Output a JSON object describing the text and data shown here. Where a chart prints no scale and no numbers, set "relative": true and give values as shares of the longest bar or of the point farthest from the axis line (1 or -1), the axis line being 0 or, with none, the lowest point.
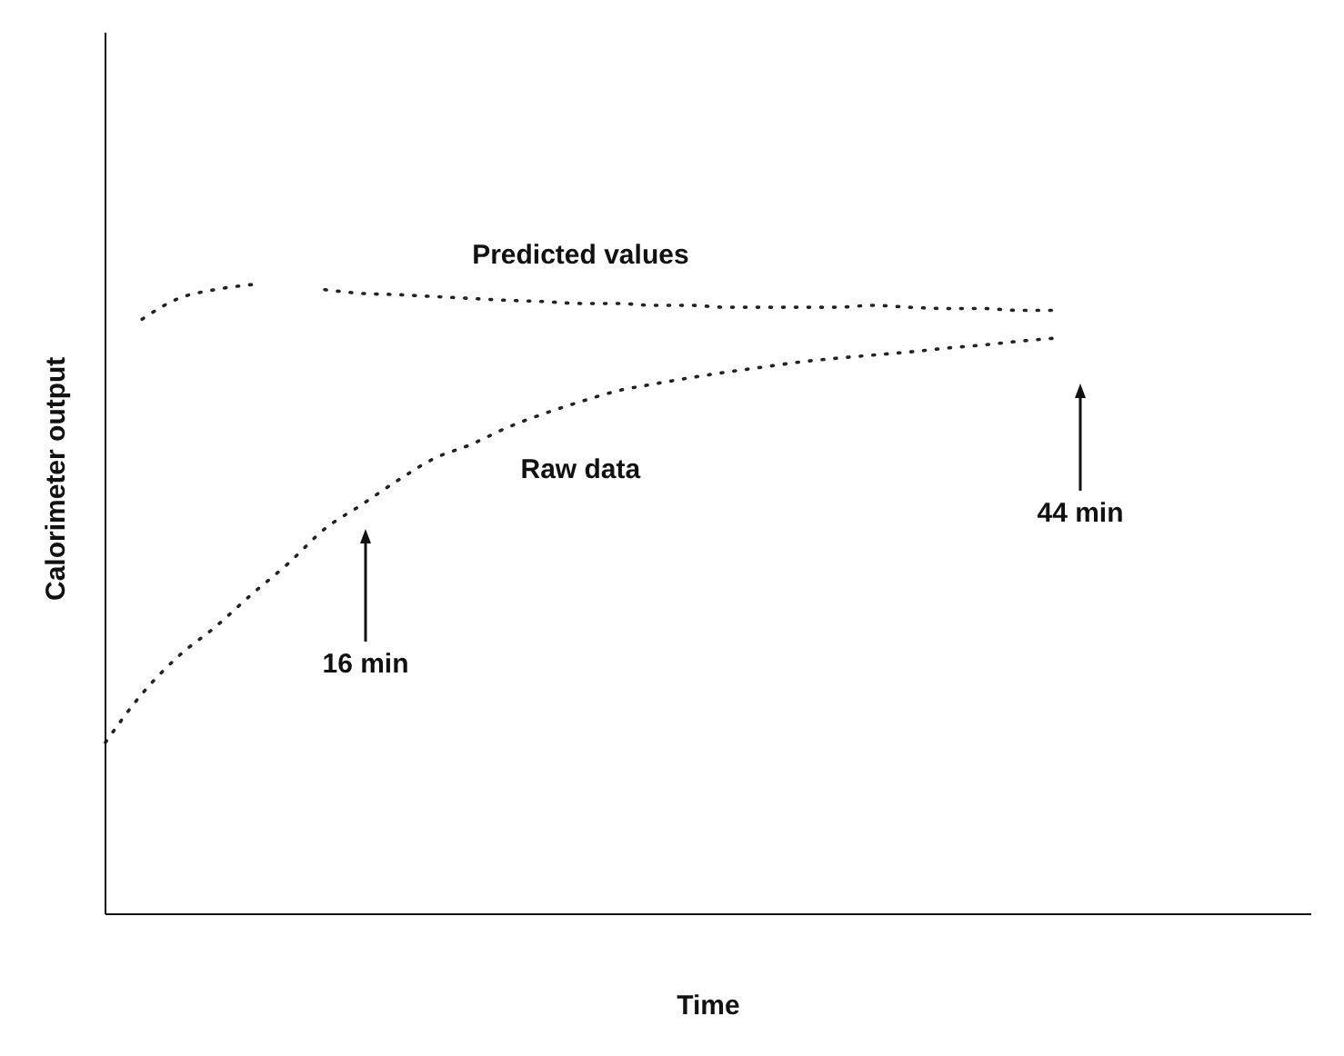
{
  "chart_data": {
    "type": "line",
    "relative": true,
    "xlabel": "Time",
    "ylabel": "Calorimeter output",
    "categories": [
      null,
      null,
      null,
      null,
      null,
      null,
      null,
      null,
      null,
      null,
      null,
      null,
      null,
      null,
      null,
      null,
      null,
      null,
      null,
      null,
      null,
      null,
      null,
      null,
      null,
      null,
      null,
      null,
      null,
      null,
      null,
      null,
      null,
      null
    ],
    "series": [
      {
        "name": "Predicted values",
        "color": "#222222",
        "values": [
          null,
          0.945,
          0.978,
          0.992,
          1,
          null,
          0.992,
          0.986,
          0.984,
          0.981,
          0.978,
          0.975,
          0.973,
          0.97,
          0.97,
          0.967,
          0.967,
          0.964,
          0.964,
          0.964,
          0.964,
          0.967,
          0.964,
          0.962,
          0.962,
          0.959,
          0.959,
          null,
          null,
          null,
          null,
          null,
          null,
          null
        ]
      },
      {
        "name": "Raw data",
        "color": "#222222",
        "values": [
          0.273,
          0.35,
          0.41,
          0.456,
          0.508,
          0.557,
          0.612,
          0.65,
          0.689,
          0.724,
          0.746,
          0.773,
          0.795,
          0.814,
          0.831,
          0.842,
          0.852,
          0.861,
          0.869,
          0.877,
          0.883,
          0.888,
          0.893,
          0.899,
          0.904,
          0.91,
          0.915,
          null,
          null,
          null,
          null,
          null,
          null,
          null
        ]
      }
    ],
    "annotations": [
      "16 min",
      "44 min"
    ],
    "line_style": "dotted",
    "marker": "none",
    "grid": false,
    "legend": false,
    "tick_labels": false
  }
}
